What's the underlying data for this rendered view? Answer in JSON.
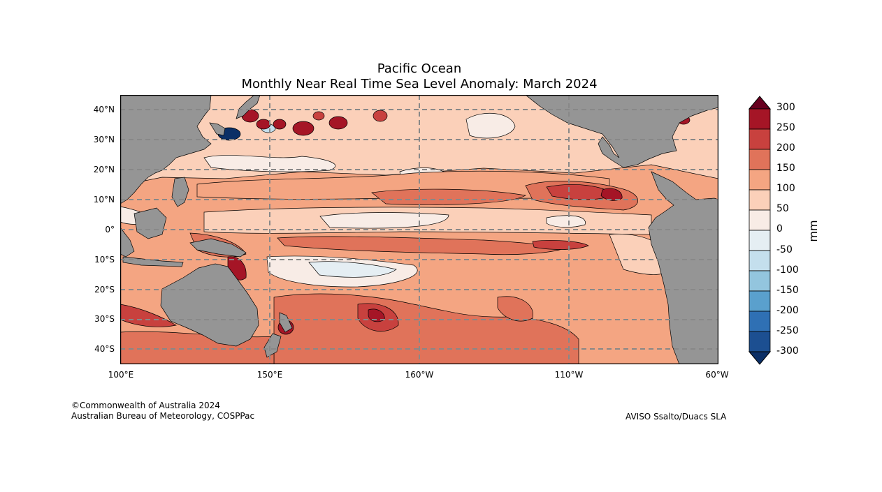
{
  "title": "Pacific Ocean",
  "subtitle": "Monthly Near Real Time Sea Level Anomaly: March 2024",
  "lat_labels": [
    "40°N",
    "30°N",
    "20°N",
    "10°N",
    "0°",
    "10°S",
    "20°S",
    "30°S",
    "40°S"
  ],
  "lon_labels": [
    "100°E",
    "150°E",
    "160°W",
    "110°W",
    "60°W"
  ],
  "colorbar": {
    "unit": "mm",
    "ticks": [
      "300",
      "250",
      "200",
      "150",
      "100",
      "50",
      "0",
      "-50",
      "-100",
      "-150",
      "-200",
      "-250",
      "-300"
    ],
    "colors": [
      "#67001f",
      "#a51526",
      "#c8413e",
      "#e0735a",
      "#f4a582",
      "#fbd0b9",
      "#f8ece6",
      "#e5eef3",
      "#c4dfed",
      "#93c5de",
      "#5aa0cd",
      "#2f70b4",
      "#1c4f91",
      "#0b2f66"
    ]
  },
  "footer": {
    "copyright": "©Commonwealth of Australia 2024",
    "org": "Australian Bureau of Meteorology, COSPPac",
    "source": "AVISO Ssalto/Duacs SLA"
  },
  "colors": {
    "land": "#959595",
    "grid": "#888888",
    "anomaly_0_50": "#f8ece6",
    "anomaly_50_100": "#fbd0b9",
    "anomaly_100_150": "#f4a582",
    "anomaly_150_200": "#e0735a",
    "anomaly_200_250": "#c8413e",
    "anomaly_250_300": "#a51526",
    "anomaly_neg": "#c4dfed",
    "anomaly_strong_neg": "#0b2f66"
  }
}
